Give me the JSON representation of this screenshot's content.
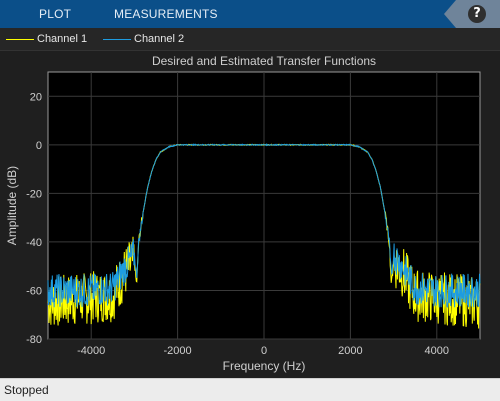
{
  "toolbar": {
    "tabs": [
      "PLOT",
      "MEASUREMENTS"
    ],
    "help_label": "?"
  },
  "legend": [
    {
      "name": "Channel 1",
      "color": "#ffff00"
    },
    {
      "name": "Channel 2",
      "color": "#1e9ce0"
    }
  ],
  "status": {
    "text": "Stopped"
  },
  "chart_data": {
    "type": "line",
    "title": "Desired and Estimated Transfer Functions",
    "xlabel": "Frequency (Hz)",
    "ylabel": "Amplitude (dB)",
    "xlim": [
      -5000,
      5000
    ],
    "ylim": [
      -80,
      30
    ],
    "xticks": [
      -4000,
      -2000,
      0,
      2000,
      4000
    ],
    "yticks": [
      20,
      0,
      -20,
      -40,
      -60,
      -80
    ],
    "grid": true,
    "legend_position": "top",
    "series": [
      {
        "name": "Channel 1",
        "color": "#ffff00",
        "x": [
          -5000,
          -4500,
          -4000,
          -3500,
          -3200,
          -3000,
          -2950,
          -2900,
          -2800,
          -2700,
          -2600,
          -2500,
          -2400,
          -2200,
          -2000,
          -1500,
          -1000,
          -500,
          0,
          500,
          1000,
          1500,
          2000,
          2200,
          2400,
          2500,
          2600,
          2700,
          2800,
          2900,
          2950,
          3000,
          3200,
          3500,
          4000,
          4500,
          5000
        ],
        "y": [
          -65,
          -64,
          -63,
          -62,
          -52,
          -48,
          -58,
          -40,
          -28,
          -18,
          -11,
          -6,
          -3,
          -0.8,
          0,
          0,
          0,
          0,
          0,
          0,
          0,
          0,
          0,
          -0.8,
          -3,
          -6,
          -11,
          -18,
          -28,
          -40,
          -58,
          -48,
          -52,
          -62,
          -63,
          -64,
          -65
        ]
      },
      {
        "name": "Channel 2",
        "color": "#1e9ce0",
        "x": [
          -5000,
          -4500,
          -4000,
          -3500,
          -3200,
          -3000,
          -2950,
          -2900,
          -2800,
          -2700,
          -2600,
          -2500,
          -2400,
          -2200,
          -2000,
          -1500,
          -1000,
          -500,
          0,
          500,
          1000,
          1500,
          2000,
          2200,
          2400,
          2500,
          2600,
          2700,
          2800,
          2900,
          2950,
          3000,
          3200,
          3500,
          4000,
          4500,
          5000
        ],
        "y": [
          -60,
          -60,
          -60,
          -59,
          -50,
          -45,
          -55,
          -40,
          -28,
          -18,
          -11,
          -6,
          -3,
          -0.8,
          0,
          0,
          0,
          0,
          0,
          0,
          0,
          0,
          0,
          -0.8,
          -3,
          -6,
          -11,
          -18,
          -28,
          -40,
          -55,
          -45,
          -50,
          -59,
          -60,
          -60,
          -60
        ]
      }
    ]
  }
}
